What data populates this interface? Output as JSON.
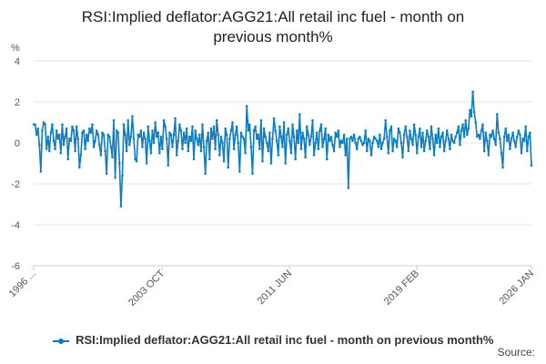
{
  "chart_data": {
    "type": "line",
    "title_lines": [
      "RSI:Implied deflator:AGG21:All retail inc fuel - month on",
      "previous month%"
    ],
    "unit": "%",
    "x_tick_labels": [
      "1996 ...",
      "2003 OCT",
      "2011 JUN",
      "2019 FEB",
      "2026 JAN"
    ],
    "x_tick_dates": [
      "1996-01",
      "2003-10",
      "2011-06",
      "2019-02",
      "2026-01"
    ],
    "x_range": [
      "1996-01",
      "2026-01"
    ],
    "y_ticks": [
      4,
      2,
      0,
      -2,
      -4,
      -6
    ],
    "ylim": [
      -6,
      4
    ],
    "grid": "horizontal",
    "color": "#0e7cc1",
    "legend_position": "bottom",
    "series": [
      {
        "name": "RSI:Implied deflator:AGG21:All retail inc fuel - month on previous month%",
        "values": [
          0.9,
          0.9,
          0.4,
          0.7,
          -0.1,
          -1.4,
          0.6,
          1.0,
          0.9,
          -0.3,
          0.3,
          -0.4,
          0.5,
          0.9,
          0.1,
          -0.3,
          0.6,
          0.2,
          0.4,
          -0.5,
          0.9,
          -0.1,
          0.3,
          0.7,
          -0.8,
          0.2,
          0.1,
          0.8,
          0.6,
          -0.4,
          0.8,
          0.2,
          -1.2,
          -0.6,
          0.5,
          0.6,
          -0.3,
          0.4,
          0.1,
          0.7,
          0.5,
          0.9,
          -0.2,
          0.1,
          0.6,
          0.4,
          -0.1,
          -0.6,
          0.5,
          0.4,
          -0.4,
          -1.5,
          0.4,
          0.3,
          -0.2,
          -0.7,
          1.1,
          -1.7,
          0.6,
          0.5,
          -1.0,
          -3.1,
          -1.6,
          0.9,
          0.4,
          -0.4,
          1.1,
          -0.1,
          0.3,
          1.3,
          0.2,
          -0.8,
          -0.9,
          0.4,
          0.3,
          0.6,
          -0.2,
          0.5,
          0.2,
          -1.0,
          0.8,
          0.1,
          -0.5,
          0.6,
          0.0,
          1.0,
          0.3,
          0.5,
          -0.5,
          0.3,
          -0.3,
          1.1,
          0.8,
          0.2,
          -1.1,
          0.5,
          0.4,
          -0.2,
          0.4,
          1.2,
          -0.6,
          0.1,
          0.9,
          0.6,
          -0.3,
          0.5,
          0.0,
          0.7,
          -0.4,
          0.3,
          0.1,
          0.8,
          -0.8,
          0.6,
          0.2,
          -0.1,
          0.4,
          -0.4,
          0.9,
          -0.2,
          -1.5,
          0.1,
          0.5,
          -0.8,
          0.7,
          0.2,
          0.8,
          -0.3,
          1.1,
          0.4,
          -0.6,
          0.3,
          0.0,
          -0.9,
          0.7,
          0.4,
          -1.2,
          0.2,
          0.6,
          1.0,
          -0.3,
          0.4,
          0.8,
          0.0,
          -1.4,
          0.5,
          0.3,
          0.2,
          -0.5,
          1.8,
          0.6,
          0.9,
          -0.2,
          -1.5,
          0.6,
          0.8,
          0.2,
          0.4,
          -0.3,
          1.1,
          -0.9,
          0.7,
          0.3,
          0.0,
          -0.4,
          0.5,
          -1.0,
          0.2,
          1.2,
          0.6,
          0.1,
          -0.6,
          0.8,
          0.3,
          -0.2,
          1.0,
          -1.0,
          0.4,
          0.7,
          0.1,
          -0.5,
          0.9,
          0.3,
          -0.8,
          0.6,
          0.0,
          1.4,
          -0.3,
          0.5,
          0.2,
          -0.7,
          0.8,
          0.4,
          -0.1,
          0.3,
          1.1,
          -0.6,
          0.0,
          0.5,
          -0.3,
          0.6,
          0.9,
          -0.2,
          0.2,
          0.7,
          -0.8,
          0.4,
          0.1,
          0.3,
          -0.1,
          -0.4,
          0.5,
          0.3,
          0.6,
          -0.2,
          0.1,
          0.0,
          0.4,
          -0.6,
          0.2,
          -2.2,
          0.2,
          0.3,
          0.1,
          0.4,
          0.0,
          -0.3,
          0.2,
          0.3,
          0.1,
          -0.1,
          0.0,
          0.6,
          -0.4,
          0.2,
          0.1,
          -0.6,
          0.0,
          0.3,
          0.2,
          0.1,
          -0.2,
          0.4,
          -0.3,
          0.0,
          0.2,
          1.1,
          0.3,
          -0.5,
          0.6,
          0.8,
          -0.4,
          0.2,
          0.1,
          -0.2,
          0.7,
          0.5,
          0.0,
          -0.7,
          0.4,
          0.8,
          0.3,
          -0.4,
          0.6,
          0.2,
          -0.1,
          0.9,
          0.4,
          -0.5,
          0.3,
          0.7,
          -0.2,
          0.5,
          -0.4,
          0.1,
          0.6,
          0.3,
          -0.3,
          0.8,
          0.2,
          -0.6,
          0.4,
          0.0,
          0.7,
          -0.2,
          0.3,
          0.5,
          -0.4,
          0.1,
          0.6,
          0.2,
          -0.3,
          0.4,
          0.1,
          0.0,
          0.3,
          0.5,
          0.8,
          -0.1,
          0.6,
          0.9,
          0.3,
          1.1,
          0.4,
          0.7,
          1.6,
          1.3,
          2.5,
          1.5,
          1.0,
          0.3,
          0.4,
          0.2,
          0.6,
          0.9,
          -0.4,
          0.5,
          0.1,
          -0.6,
          0.4,
          0.3,
          0.6,
          0.2,
          -0.1,
          1.4,
          0.5,
          0.2,
          -0.5,
          -1.2,
          0.3,
          0.7,
          0.1,
          0.4,
          -0.3,
          0.2,
          0.5,
          0.1,
          -0.2,
          0.3,
          0.6,
          0.4,
          -0.5,
          0.2,
          0.1,
          0.8,
          -0.4,
          0.3,
          0.5,
          -1.1
        ]
      }
    ]
  },
  "source_label": "Source:"
}
